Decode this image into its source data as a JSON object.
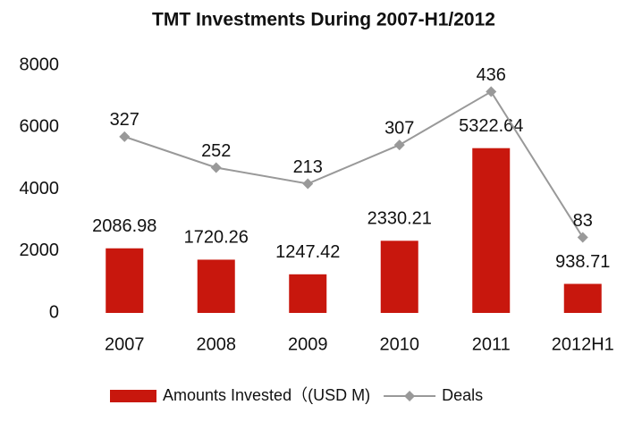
{
  "chart_data": {
    "type": "bar-line",
    "title": "TMT Investments During 2007-H1/2012",
    "categories": [
      "2007",
      "2008",
      "2009",
      "2010",
      "2011",
      "2012H1"
    ],
    "series": [
      {
        "name": "Amounts Invested（(USD M)",
        "type": "bar",
        "color": "#c8170d",
        "values": [
          2086.98,
          1720.26,
          1247.42,
          2330.21,
          5322.64,
          938.71
        ]
      },
      {
        "name": "Deals",
        "type": "line",
        "axis": "y2",
        "color": "#999999",
        "values": [
          327,
          252,
          213,
          307,
          436,
          83
        ]
      }
    ],
    "ylim": [
      0,
      8000
    ],
    "yticks": [
      0,
      2000,
      4000,
      6000,
      8000
    ],
    "y2lim": [
      -100,
      500
    ],
    "grid": false,
    "legend": "bottom"
  }
}
